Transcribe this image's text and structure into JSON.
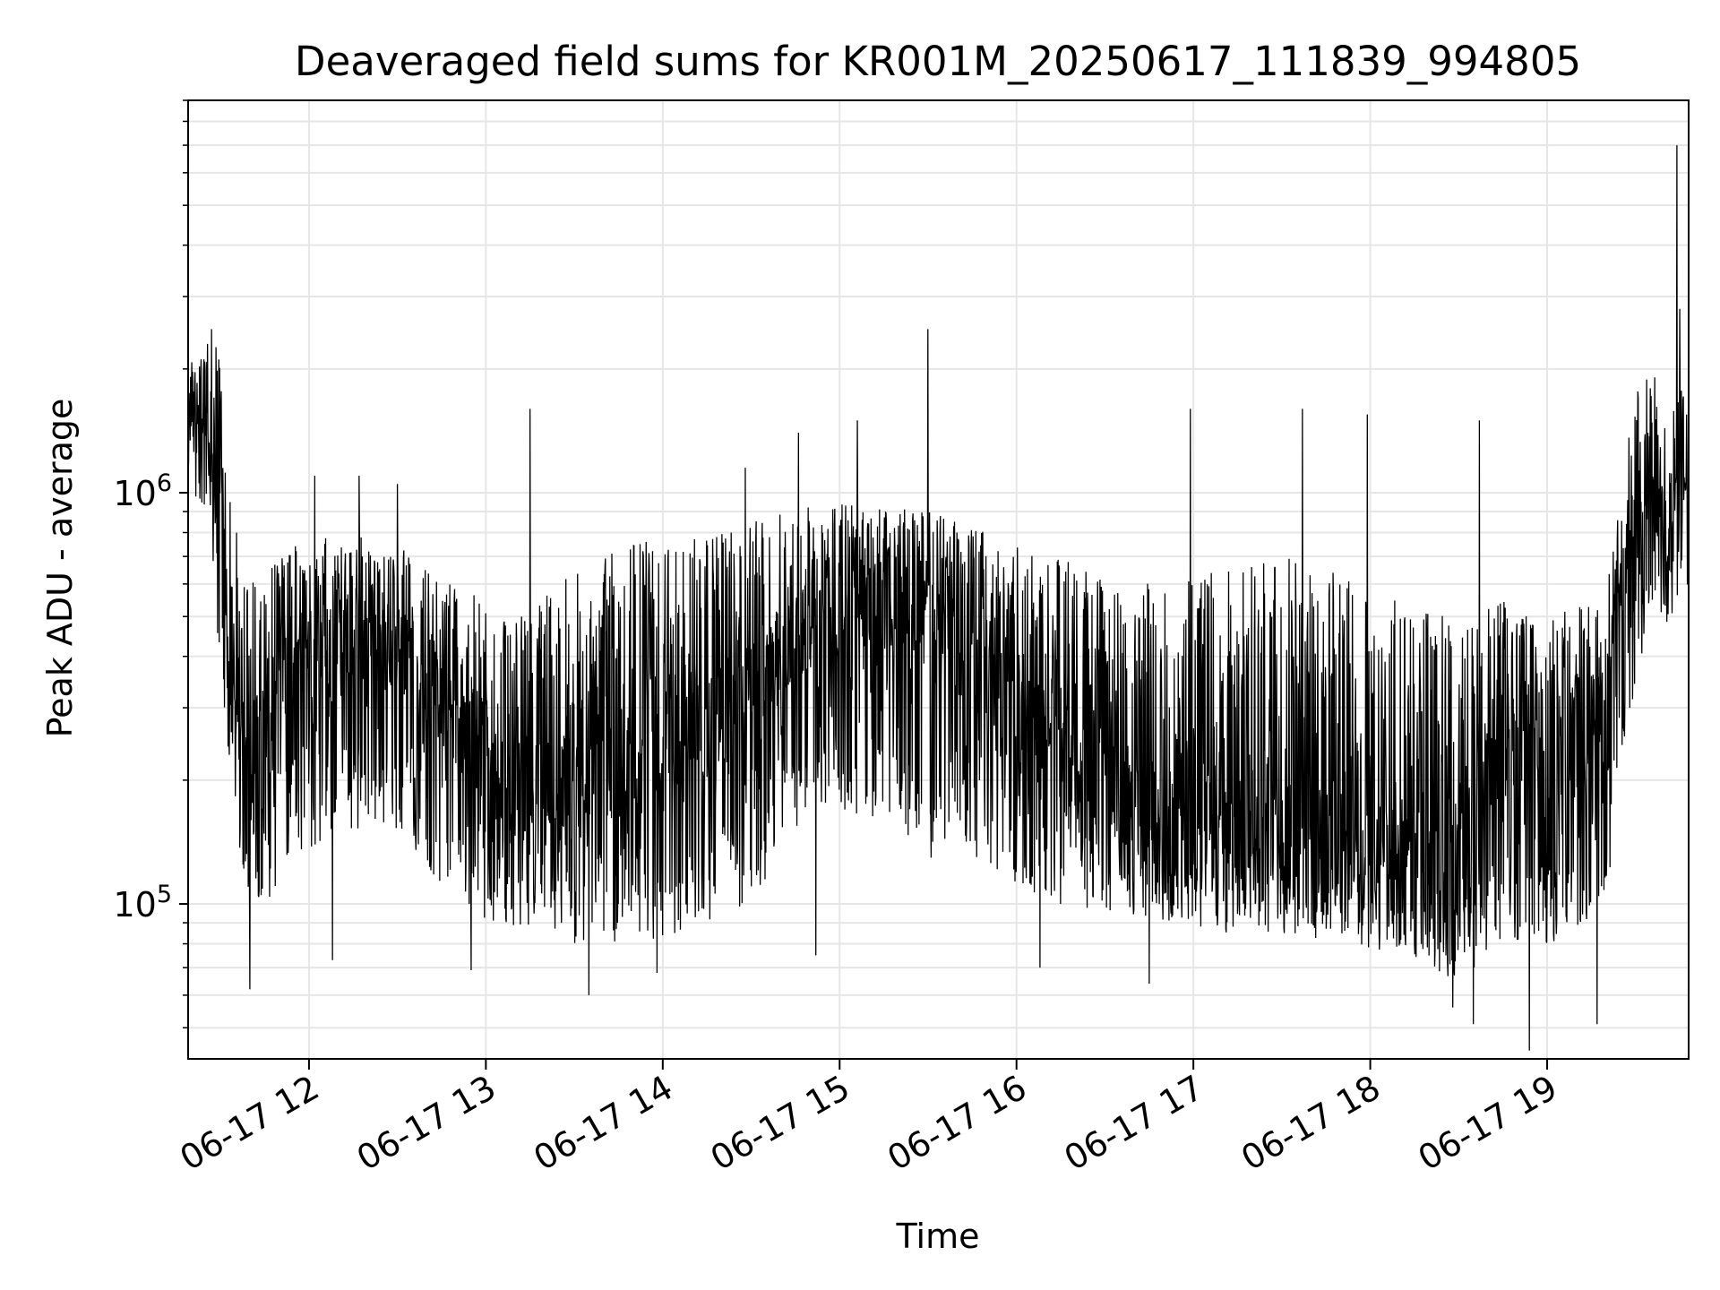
{
  "chart_data": {
    "type": "line",
    "title": "Deaveraged field sums for KR001M_20250617_111839_994805",
    "xlabel": "Time",
    "ylabel": "Peak ADU - average",
    "yscale": "log",
    "ylim": [
      42000,
      9000000
    ],
    "xlim": [
      "2025-06-17 11:19:00",
      "2025-06-17 19:48:00"
    ],
    "grid": true,
    "x_ticks": [
      {
        "value": "2025-06-17 12:00",
        "label": "06-17 12"
      },
      {
        "value": "2025-06-17 13:00",
        "label": "06-17 13"
      },
      {
        "value": "2025-06-17 14:00",
        "label": "06-17 14"
      },
      {
        "value": "2025-06-17 15:00",
        "label": "06-17 15"
      },
      {
        "value": "2025-06-17 16:00",
        "label": "06-17 16"
      },
      {
        "value": "2025-06-17 17:00",
        "label": "06-17 17"
      },
      {
        "value": "2025-06-17 18:00",
        "label": "06-17 18"
      },
      {
        "value": "2025-06-17 19:00",
        "label": "06-17 19"
      }
    ],
    "y_ticks": [
      {
        "value": 100000,
        "base": "10",
        "exp": "5"
      },
      {
        "value": 1000000,
        "base": "10",
        "exp": "6"
      }
    ],
    "series": [
      {
        "color": "#000000",
        "envelope": [
          {
            "x": "2025-06-17 11:19",
            "low": 1000000,
            "mid": 1500000,
            "high": 2000000
          },
          {
            "x": "2025-06-17 11:25",
            "low": 900000,
            "mid": 1400000,
            "high": 2400000
          },
          {
            "x": "2025-06-17 11:31",
            "low": 300000,
            "mid": 700000,
            "high": 2200000
          },
          {
            "x": "2025-06-17 11:37",
            "low": 120000,
            "mid": 250000,
            "high": 600000
          },
          {
            "x": "2025-06-17 11:45",
            "low": 90000,
            "mid": 250000,
            "high": 650000
          },
          {
            "x": "2025-06-17 11:55",
            "low": 130000,
            "mid": 400000,
            "high": 750000
          },
          {
            "x": "2025-06-17 12:10",
            "low": 150000,
            "mid": 440000,
            "high": 800000
          },
          {
            "x": "2025-06-17 12:30",
            "low": 150000,
            "mid": 420000,
            "high": 750000
          },
          {
            "x": "2025-06-17 12:50",
            "low": 100000,
            "mid": 280000,
            "high": 600000
          },
          {
            "x": "2025-06-17 13:10",
            "low": 85000,
            "mid": 190000,
            "high": 500000
          },
          {
            "x": "2025-06-17 13:30",
            "low": 80000,
            "mid": 190000,
            "high": 650000
          },
          {
            "x": "2025-06-17 13:50",
            "low": 80000,
            "mid": 230000,
            "high": 750000
          },
          {
            "x": "2025-06-17 14:10",
            "low": 85000,
            "mid": 280000,
            "high": 800000
          },
          {
            "x": "2025-06-17 14:30",
            "low": 100000,
            "mid": 320000,
            "high": 850000
          },
          {
            "x": "2025-06-17 14:50",
            "low": 170000,
            "mid": 480000,
            "high": 950000
          },
          {
            "x": "2025-06-17 15:10",
            "low": 160000,
            "mid": 560000,
            "high": 950000
          },
          {
            "x": "2025-06-17 15:30",
            "low": 130000,
            "mid": 500000,
            "high": 900000
          },
          {
            "x": "2025-06-17 15:50",
            "low": 120000,
            "mid": 360000,
            "high": 800000
          },
          {
            "x": "2025-06-17 16:10",
            "low": 100000,
            "mid": 250000,
            "high": 700000
          },
          {
            "x": "2025-06-17 16:30",
            "low": 95000,
            "mid": 200000,
            "high": 650000
          },
          {
            "x": "2025-06-17 16:50",
            "low": 90000,
            "mid": 160000,
            "high": 600000
          },
          {
            "x": "2025-06-17 17:10",
            "low": 85000,
            "mid": 150000,
            "high": 650000
          },
          {
            "x": "2025-06-17 17:30",
            "low": 85000,
            "mid": 150000,
            "high": 700000
          },
          {
            "x": "2025-06-17 17:50",
            "low": 80000,
            "mid": 140000,
            "high": 650000
          },
          {
            "x": "2025-06-17 18:10",
            "low": 75000,
            "mid": 130000,
            "high": 550000
          },
          {
            "x": "2025-06-17 18:30",
            "low": 65000,
            "mid": 120000,
            "high": 500000
          },
          {
            "x": "2025-06-17 18:45",
            "low": 80000,
            "mid": 250000,
            "high": 550000
          },
          {
            "x": "2025-06-17 19:05",
            "low": 80000,
            "mid": 250000,
            "high": 520000
          },
          {
            "x": "2025-06-17 19:20",
            "low": 100000,
            "mid": 320000,
            "high": 560000
          },
          {
            "x": "2025-06-17 19:30",
            "low": 350000,
            "mid": 900000,
            "high": 1900000
          },
          {
            "x": "2025-06-17 19:48",
            "low": 600000,
            "mid": 950000,
            "high": 2000000
          }
        ],
        "spikes": [
          {
            "x": "2025-06-17 11:27",
            "y": 2500000
          },
          {
            "x": "2025-06-17 11:40",
            "y": 62000
          },
          {
            "x": "2025-06-17 12:02",
            "y": 1100000
          },
          {
            "x": "2025-06-17 12:08",
            "y": 73000
          },
          {
            "x": "2025-06-17 12:17",
            "y": 1100000
          },
          {
            "x": "2025-06-17 12:30",
            "y": 1050000
          },
          {
            "x": "2025-06-17 12:55",
            "y": 69000
          },
          {
            "x": "2025-06-17 13:15",
            "y": 1600000
          },
          {
            "x": "2025-06-17 13:35",
            "y": 60000
          },
          {
            "x": "2025-06-17 13:58",
            "y": 68000
          },
          {
            "x": "2025-06-17 14:28",
            "y": 1150000
          },
          {
            "x": "2025-06-17 14:46",
            "y": 1400000
          },
          {
            "x": "2025-06-17 14:52",
            "y": 75000
          },
          {
            "x": "2025-06-17 15:06",
            "y": 1500000
          },
          {
            "x": "2025-06-17 15:30",
            "y": 2500000
          },
          {
            "x": "2025-06-17 16:08",
            "y": 70000
          },
          {
            "x": "2025-06-17 16:45",
            "y": 64000
          },
          {
            "x": "2025-06-17 16:59",
            "y": 1600000
          },
          {
            "x": "2025-06-17 17:37",
            "y": 1600000
          },
          {
            "x": "2025-06-17 17:59",
            "y": 1550000
          },
          {
            "x": "2025-06-17 18:28",
            "y": 56000
          },
          {
            "x": "2025-06-17 18:35",
            "y": 51000
          },
          {
            "x": "2025-06-17 18:37",
            "y": 1500000
          },
          {
            "x": "2025-06-17 18:54",
            "y": 44000
          },
          {
            "x": "2025-06-17 19:17",
            "y": 51000
          },
          {
            "x": "2025-06-17 19:44",
            "y": 7000000
          },
          {
            "x": "2025-06-17 19:45",
            "y": 2800000
          }
        ]
      }
    ]
  }
}
